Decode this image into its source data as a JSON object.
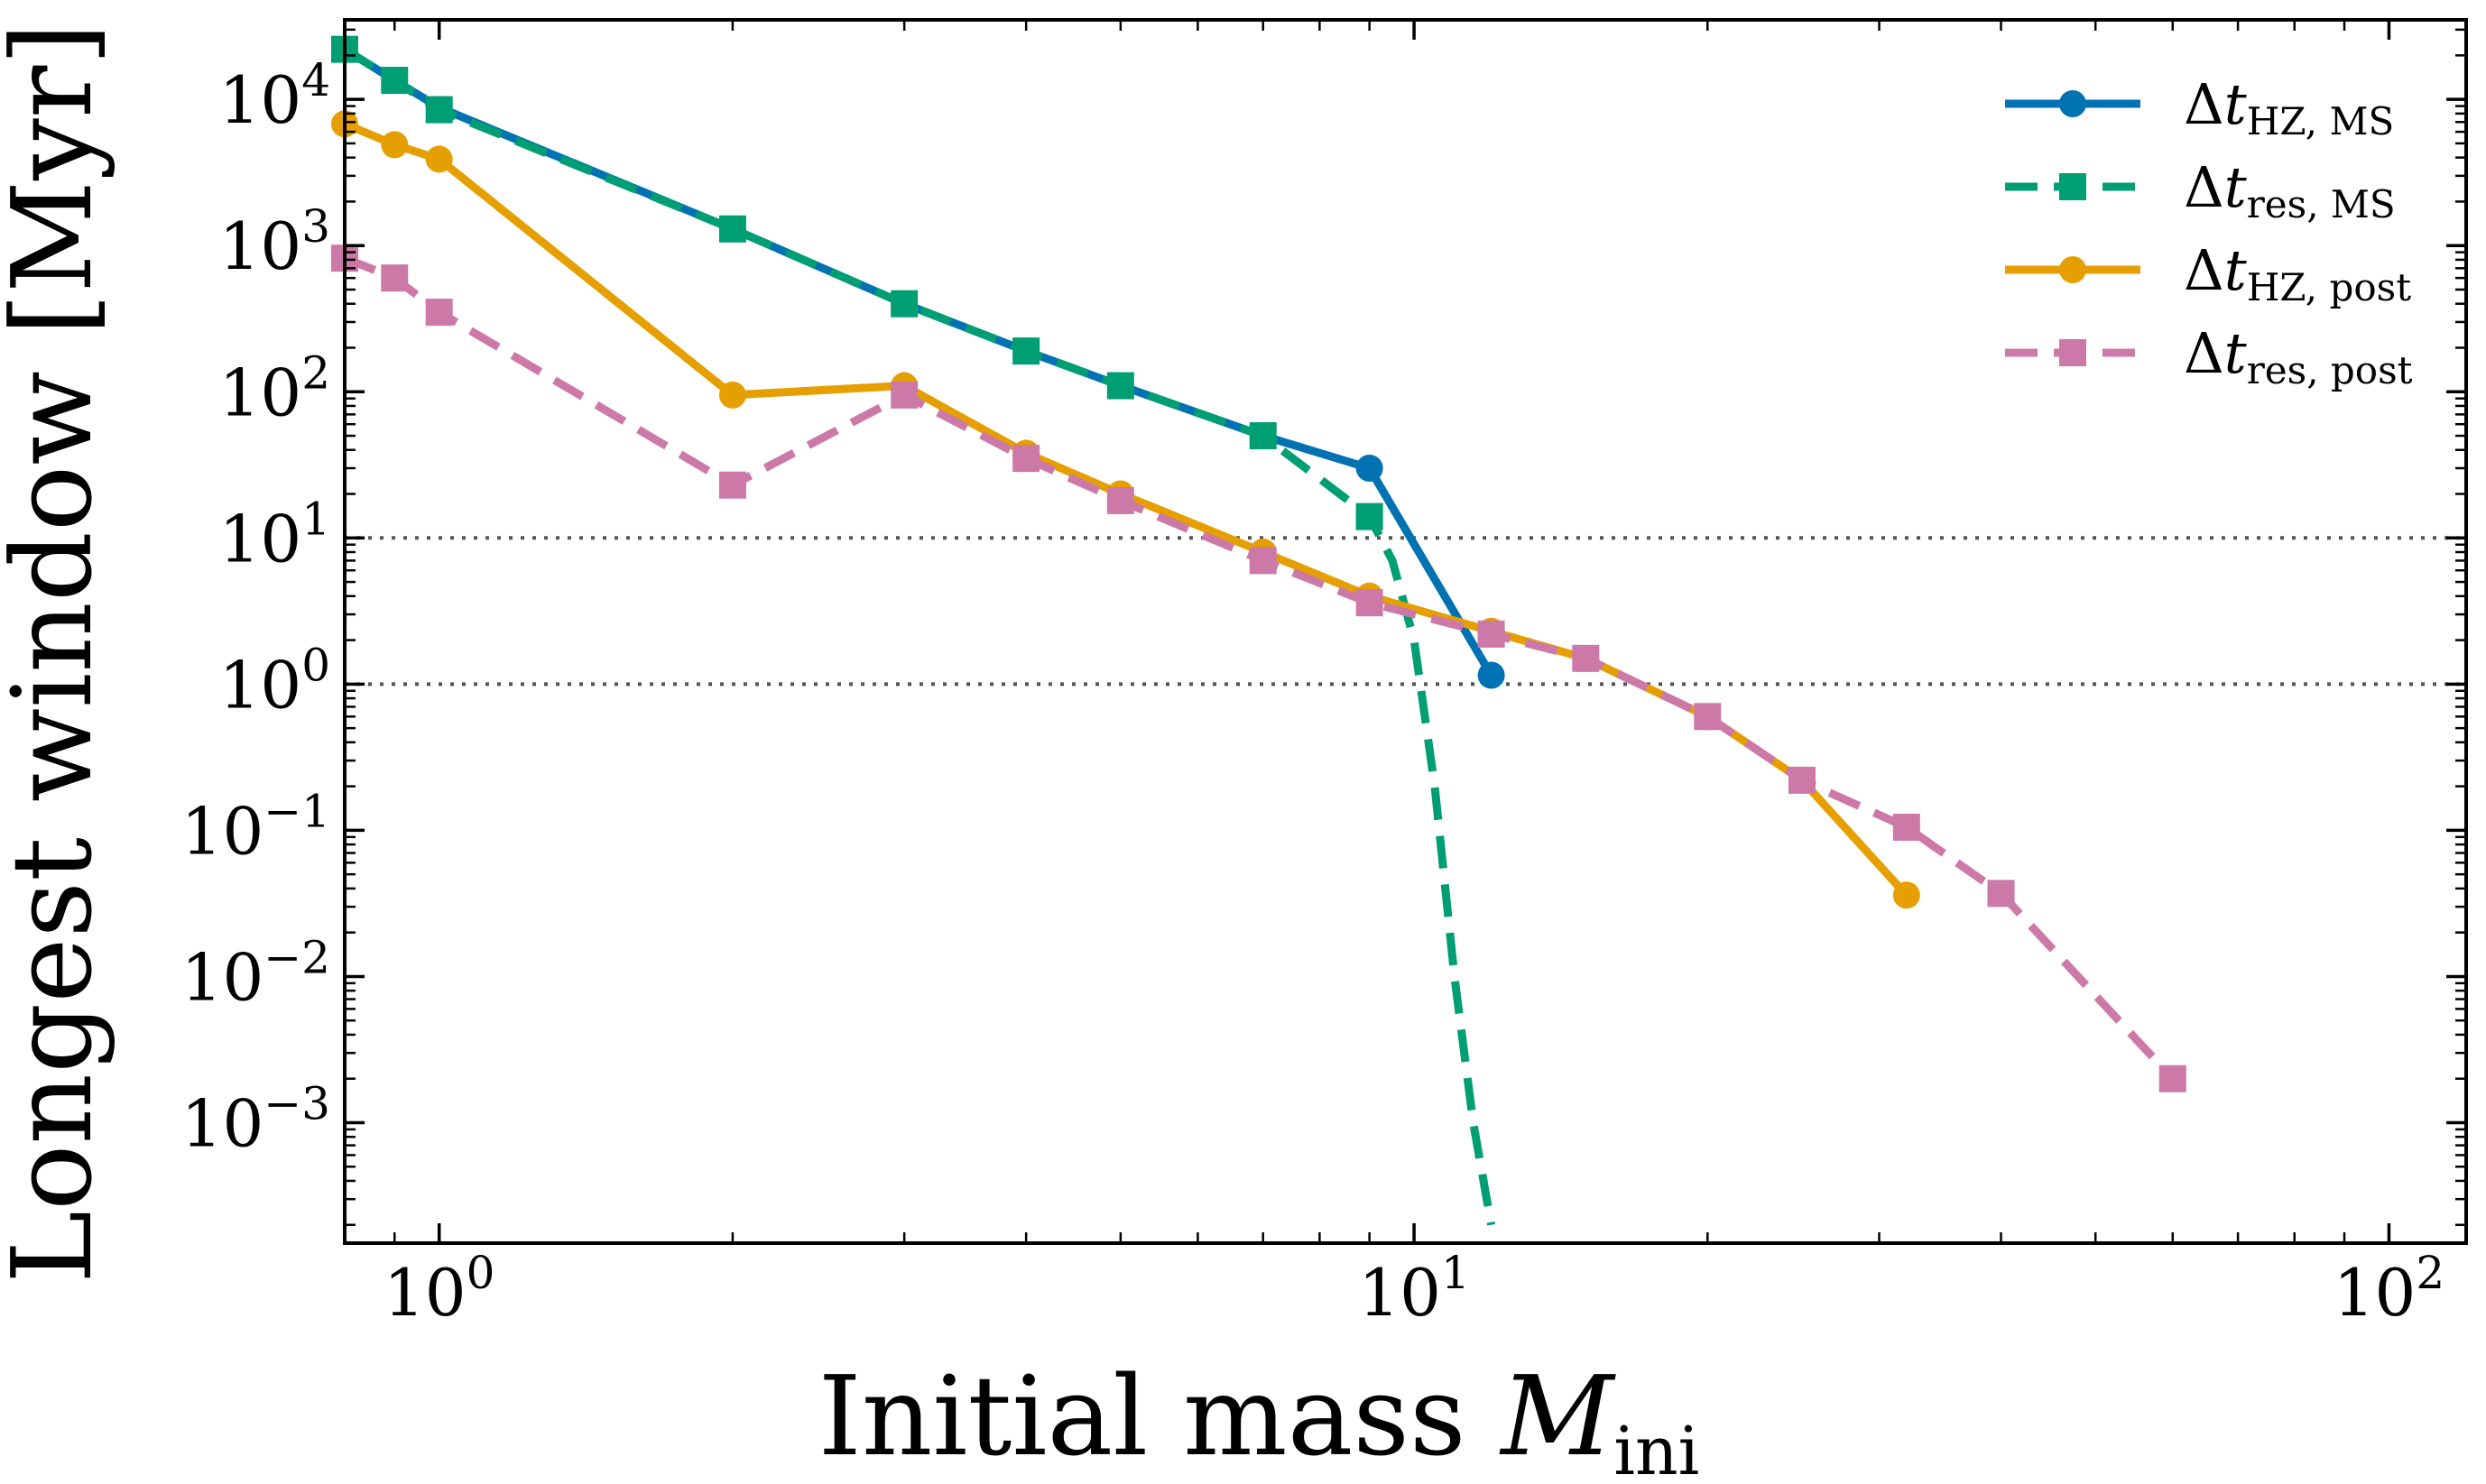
{
  "chart_data": {
    "type": "line",
    "xlabel": {
      "main": "Initial mass ",
      "var": "M",
      "sub": "ini"
    },
    "ylabel": "Longest window [Myr]",
    "xscale": "log",
    "yscale": "log",
    "xlim": [
      0.8,
      120
    ],
    "ylim": [
      0.00015,
      35000
    ],
    "x_ticks": [
      {
        "base": "10",
        "exp": "0",
        "value": 1
      },
      {
        "base": "10",
        "exp": "1",
        "value": 10
      },
      {
        "base": "10",
        "exp": "2",
        "value": 100
      }
    ],
    "y_ticks": [
      {
        "base": "10",
        "exp": "4",
        "value": 10000
      },
      {
        "base": "10",
        "exp": "3",
        "value": 1000
      },
      {
        "base": "10",
        "exp": "2",
        "value": 100
      },
      {
        "base": "10",
        "exp": "1",
        "value": 10
      },
      {
        "base": "10",
        "exp": "0",
        "value": 1
      },
      {
        "base": "10",
        "exp": "−1",
        "value": 0.1
      },
      {
        "base": "10",
        "exp": "−2",
        "value": 0.01
      },
      {
        "base": "10",
        "exp": "−3",
        "value": 0.001
      }
    ],
    "reference_lines_y": [
      10,
      1
    ],
    "legend_position": "top-right",
    "series": [
      {
        "name": {
          "prefix": "Δt",
          "sub": "HZ, MS"
        },
        "color": "#0072B2",
        "line": "solid",
        "marker": "circle",
        "markevery": "last",
        "x": [
          0.8,
          0.9,
          1.0,
          2.0,
          3.0,
          4.0,
          5.0,
          7.0,
          9.0,
          12.0
        ],
        "y": [
          22000,
          13500,
          8800,
          1300,
          400,
          190,
          110,
          50,
          30,
          1.15
        ]
      },
      {
        "name": {
          "prefix": "Δt",
          "sub": "res, MS"
        },
        "color": "#009E73",
        "line": "dashed",
        "marker": "square",
        "markevery": "upto9",
        "x": [
          0.8,
          0.9,
          1.0,
          2.0,
          3.0,
          4.0,
          5.0,
          7.0,
          9.0,
          9.5,
          10.0,
          10.5,
          11.0,
          11.5,
          12.0
        ],
        "y": [
          22000,
          13500,
          8500,
          1300,
          400,
          190,
          110,
          50,
          14,
          7,
          2,
          0.2,
          0.01,
          0.001,
          0.0002
        ]
      },
      {
        "name": {
          "prefix": "Δt",
          "sub": "HZ, post"
        },
        "color": "#E69F00",
        "line": "solid",
        "marker": "circle",
        "markevery": "all",
        "x": [
          0.8,
          0.9,
          1.0,
          2.0,
          3.0,
          4.0,
          5.0,
          7.0,
          9.0,
          12.0,
          15.0,
          20.0,
          25.0,
          32.0
        ],
        "y": [
          6800,
          4900,
          3900,
          95,
          110,
          38,
          20,
          8,
          4,
          2.3,
          1.5,
          0.6,
          0.22,
          0.036
        ]
      },
      {
        "name": {
          "prefix": "Δt",
          "sub": "res, post"
        },
        "color": "#CC79A7",
        "line": "dashed",
        "marker": "square",
        "markevery": "all",
        "x": [
          0.8,
          0.9,
          1.0,
          2.0,
          3.0,
          4.0,
          5.0,
          7.0,
          9.0,
          12.0,
          15.0,
          20.0,
          25.0,
          32.0,
          40.0,
          60.0
        ],
        "y": [
          820,
          600,
          350,
          23,
          95,
          35,
          18,
          7,
          3.6,
          2.2,
          1.5,
          0.6,
          0.22,
          0.105,
          0.037,
          0.002
        ]
      }
    ]
  }
}
